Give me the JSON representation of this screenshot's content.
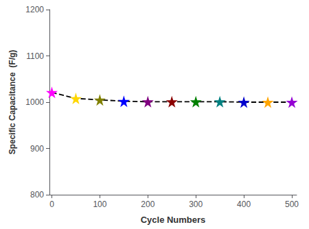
{
  "chart_data": {
    "type": "line",
    "x": [
      0,
      50,
      100,
      150,
      200,
      250,
      300,
      350,
      400,
      450,
      500
    ],
    "values": [
      1021,
      1008,
      1005,
      1002,
      1001,
      1001,
      1001,
      1001,
      1000,
      1000,
      1000
    ],
    "color": "#000000",
    "colors": [
      "#FF00FF",
      "#FFD700",
      "#808000",
      "#0000FF",
      "#800080",
      "#8B0000",
      "#008000",
      "#008080",
      "#0000CD",
      "#FFA500",
      "#9400D3"
    ],
    "line_style": "dashed",
    "marker": "star",
    "xlabel": "Cycle Numbers",
    "ylabel": "Specific Capacitance  (F/g)",
    "xlim": [
      -5,
      510
    ],
    "ylim": [
      800,
      1200
    ],
    "xticks": [
      0,
      100,
      200,
      300,
      400,
      500
    ],
    "yticks": [
      800,
      900,
      1000,
      1100,
      1200
    ],
    "grid": false
  }
}
